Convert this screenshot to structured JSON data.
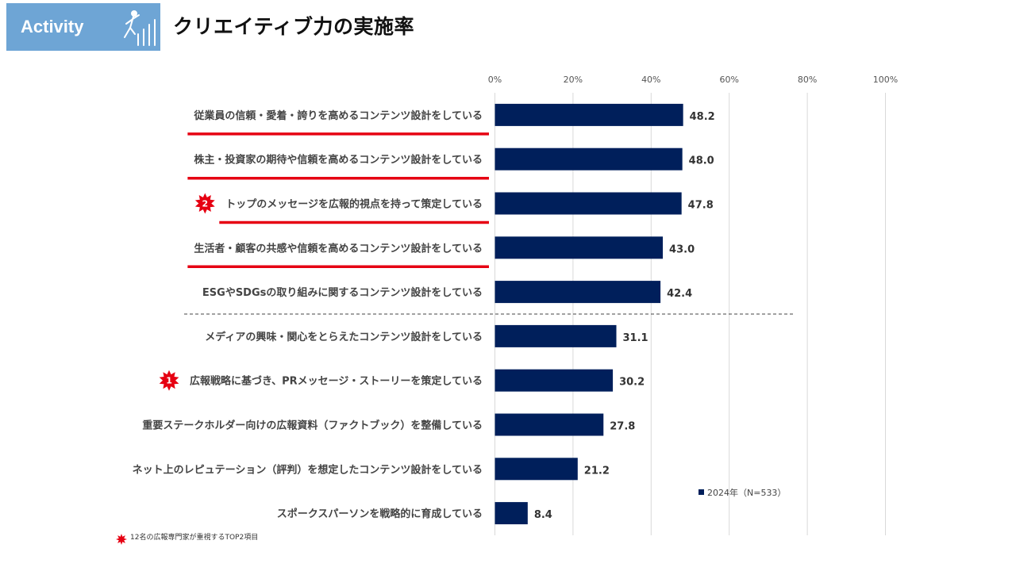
{
  "header": {
    "tag_label": "Activity",
    "title": "クリエイティブ力の実施率",
    "tag_color": "#6ea5d5"
  },
  "chart_data": {
    "type": "bar",
    "orientation": "horizontal",
    "categories": [
      "従業員の信頼・愛着・誇りを高めるコンテンツ設計をしている",
      "株主・投資家の期待や信頼を高めるコンテンツ設計をしている",
      "トップのメッセージを広報的視点を持って策定している",
      "生活者・顧客の共感や信頼を高めるコンテンツ設計をしている",
      "ESGやSDGsの取り組みに関するコンテンツ設計をしている",
      "メディアの興味・関心をとらえたコンテンツ設計をしている",
      "広報戦略に基づき、PRメッセージ・ストーリーを策定している",
      "重要ステークホルダー向けの広報資料（ファクトブック）を整備している",
      "ネット上のレピュテーション（評判）を想定したコンテンツ設計をしている",
      "スポークスパーソンを戦略的に育成している"
    ],
    "values": [
      48.2,
      48.0,
      47.8,
      43.0,
      42.4,
      31.1,
      30.2,
      27.8,
      21.2,
      8.4
    ],
    "value_labels": [
      "48.2",
      "48.0",
      "47.8",
      "43.0",
      "42.4",
      "31.1",
      "30.2",
      "27.8",
      "21.2",
      "8.4"
    ],
    "xlim": [
      0,
      100
    ],
    "x_ticks": [
      "0%",
      "20%",
      "40%",
      "60%",
      "80%",
      "100%"
    ],
    "series": [
      {
        "name": "2024年（N=533）",
        "color": "#001f5b"
      }
    ],
    "legend_position": "bottom-right",
    "grid": true,
    "underlined_categories": [
      0,
      1,
      2,
      3
    ],
    "underline_color": "#e60012",
    "separator_after_category": 4,
    "ranked_markers": [
      {
        "category": 2,
        "rank": "2"
      },
      {
        "category": 6,
        "rank": "1"
      }
    ],
    "marker_color": "#e60012"
  },
  "footnote": "12名の広報専門家が重視するTOP2項目"
}
